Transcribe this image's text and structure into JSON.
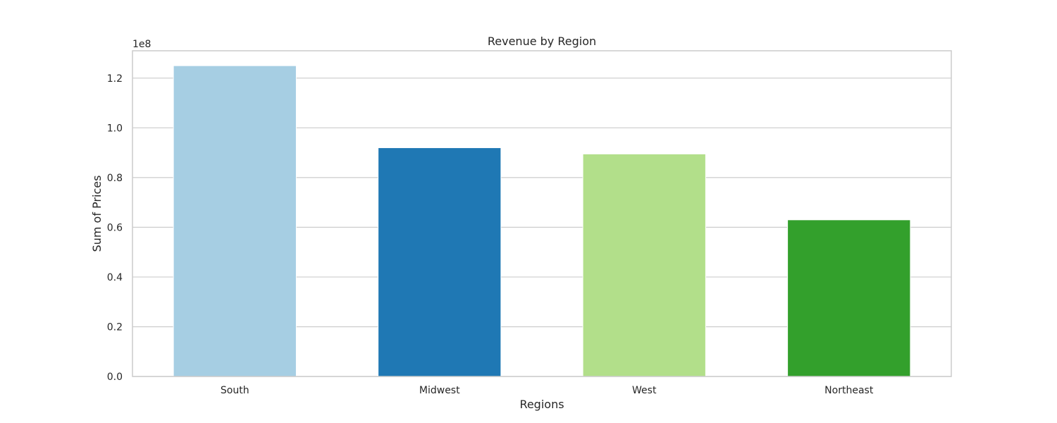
{
  "chart_data": {
    "type": "bar",
    "title": "Revenue by Region",
    "xlabel": "Regions",
    "ylabel": "Sum of Prices",
    "y_offset_label": "1e8",
    "y_scale_factor": 100000000,
    "categories": [
      "South",
      "Midwest",
      "West",
      "Northeast"
    ],
    "values": [
      125000000,
      92000000,
      89500000,
      63000000
    ],
    "colors": [
      "#a6cee3",
      "#1f78b4",
      "#b2df8a",
      "#33a02c"
    ],
    "ylim": [
      0,
      131000000
    ],
    "y_ticks": [
      0,
      20000000,
      40000000,
      60000000,
      80000000,
      100000000,
      120000000
    ],
    "y_tick_labels": [
      "0.0",
      "0.2",
      "0.4",
      "0.6",
      "0.8",
      "1.0",
      "1.2"
    ],
    "grid": true,
    "grid_axis": "y",
    "grid_color": "#cccccc",
    "frame_color": "#cccccc"
  }
}
